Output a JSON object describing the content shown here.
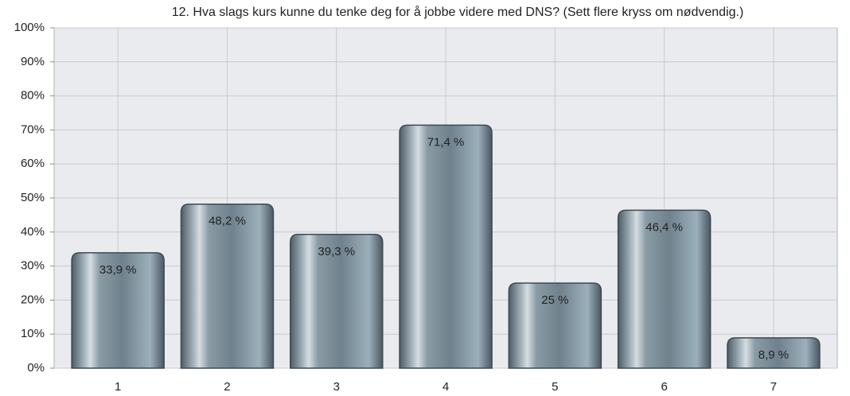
{
  "chart_data": {
    "type": "bar",
    "title": "12. Hva slags kurs kunne du tenke deg for å jobbe videre med DNS? (Sett flere kryss om nødvendig.)",
    "categories": [
      "1",
      "2",
      "3",
      "4",
      "5",
      "6",
      "7"
    ],
    "values": [
      33.9,
      48.2,
      39.3,
      71.4,
      25,
      46.4,
      8.9
    ],
    "value_labels": [
      "33,9 %",
      "48,2 %",
      "39,3 %",
      "71,4 %",
      "25 %",
      "46,4 %",
      "8,9 %"
    ],
    "color": "#7d909b",
    "ylim": [
      0,
      100
    ],
    "yticks": [
      {
        "value": 0,
        "label": "0%"
      },
      {
        "value": 10,
        "label": "10%"
      },
      {
        "value": 20,
        "label": "20%"
      },
      {
        "value": 30,
        "label": "30%"
      },
      {
        "value": 40,
        "label": "40%"
      },
      {
        "value": 50,
        "label": "50%"
      },
      {
        "value": 60,
        "label": "60%"
      },
      {
        "value": 70,
        "label": "70%"
      },
      {
        "value": 80,
        "label": "80%"
      },
      {
        "value": 90,
        "label": "90%"
      },
      {
        "value": 100,
        "label": "100%"
      }
    ],
    "grid": true
  }
}
